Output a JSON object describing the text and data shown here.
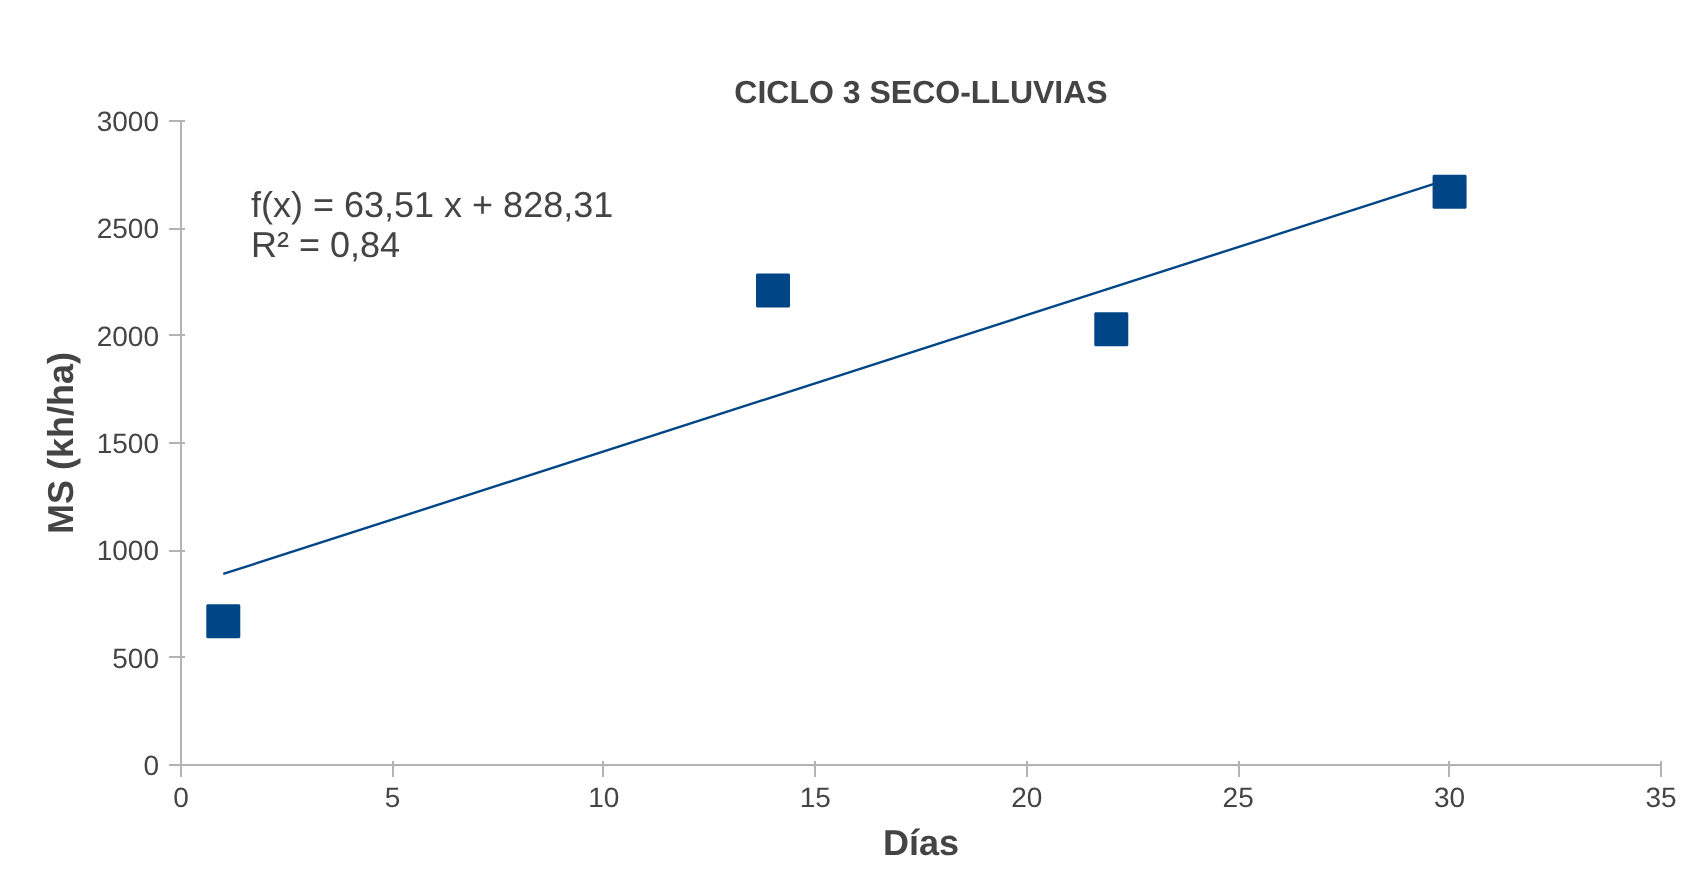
{
  "chart_data": {
    "type": "scatter",
    "title": "CICLO 3 SECO-LLUVIAS",
    "xlabel": "Días",
    "ylabel": "MS (kh/ha)",
    "series": [
      {
        "color": "#004586",
        "x": [
          1,
          14,
          22,
          30
        ],
        "values": [
          670,
          2210,
          2030,
          2670
        ],
        "marker": "square"
      },
      {
        "type": "line",
        "color": "#004586",
        "x": [
          1,
          30
        ],
        "values": [
          890,
          2730
        ],
        "marker": "none"
      }
    ],
    "xlim": [
      0,
      35
    ],
    "xticks": [
      0,
      5,
      10,
      15,
      20,
      25,
      30,
      35
    ],
    "ylim": [
      0,
      3000
    ],
    "yticks": [
      0,
      500,
      1000,
      1500,
      2000,
      2500,
      3000
    ],
    "grid": false,
    "annotations": [
      "f(x) = 63,51 x + 828,31\nR² = 0,84"
    ]
  }
}
